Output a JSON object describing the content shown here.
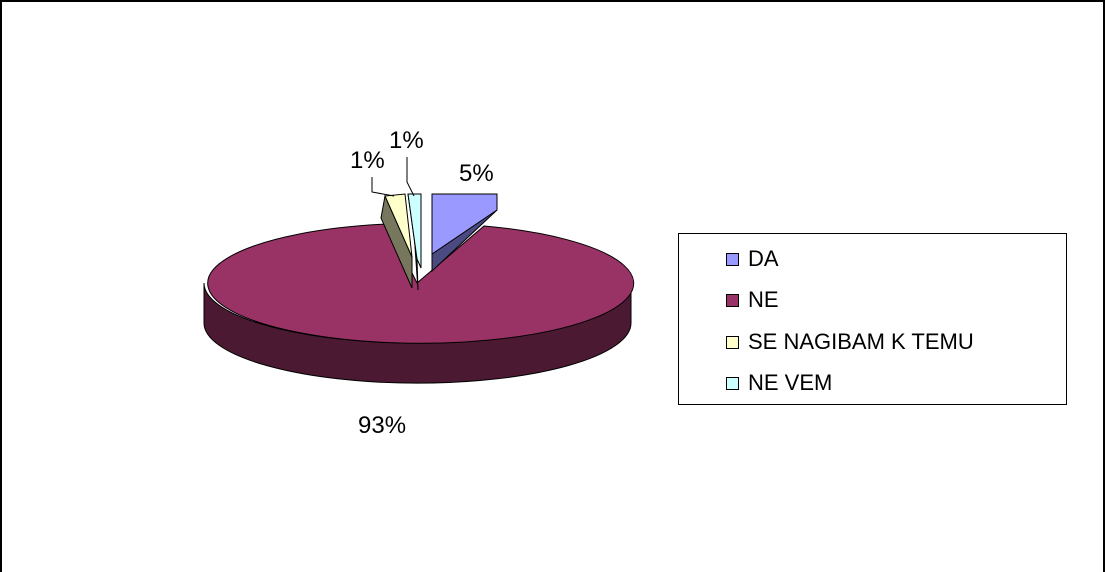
{
  "chart_data": {
    "type": "pie",
    "title": "",
    "categories": [
      "DA",
      "NE",
      "SE NAGIBAM K TEMU",
      "NE VEM"
    ],
    "values": [
      5,
      93,
      1,
      1
    ],
    "data_labels": [
      "5%",
      "93%",
      "1%",
      "1%"
    ],
    "legend_position": "right",
    "colors": [
      "#9999FF",
      "#993366",
      "#FFFFCC",
      "#CCFFFF"
    ]
  }
}
